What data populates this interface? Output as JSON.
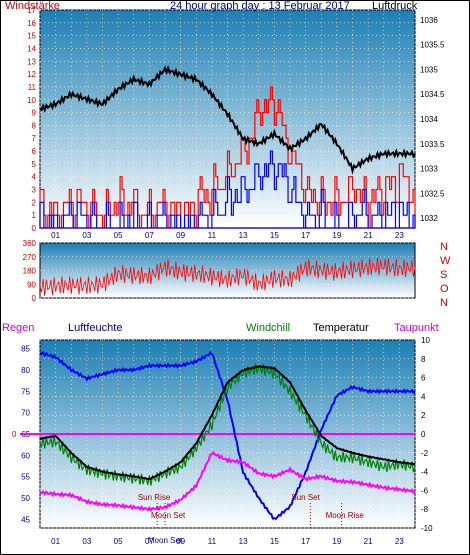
{
  "header": {
    "left_label": "Windstärke",
    "title": "24 hour graph day : 13 Februar 2017",
    "right_label": "Luftdruck"
  },
  "panel3_header": {
    "regen": "Regen",
    "luftfeuchte": "Luftfeuchte",
    "windchill": "Windchill",
    "temperatur": "Temperatur",
    "taupunkt": "Taupunkt"
  },
  "colors": {
    "panel_top": "#1c7fb4",
    "panel_bottom": "#ffffff",
    "wind": "#ff0000",
    "gust": "#0000ff",
    "pressure": "#000000",
    "windchill": "#008000",
    "temperature": "#000000",
    "humidity": "#0000ff",
    "dewpoint": "#ff00ff",
    "zero_line": "#ff00ff",
    "axis_red": "#cc0000",
    "axis_blue": "#00008b"
  },
  "chart_data": [
    {
      "type": "line",
      "title": "24 hour graph day : 13 Februar 2017",
      "left_axis": "Windstärke",
      "right_axis": "Luftdruck",
      "x_ticks": [
        "01",
        "03",
        "05",
        "07",
        "09",
        "11",
        "13",
        "15",
        "17",
        "19",
        "21",
        "23"
      ],
      "left_ylim": [
        0,
        17
      ],
      "left_ticks": [
        0,
        1,
        2,
        3,
        4,
        5,
        6,
        7,
        8,
        9,
        10,
        11,
        12,
        13,
        14,
        15,
        16,
        17
      ],
      "right_ylim": [
        1031.8,
        1036.2
      ],
      "right_ticks": [
        1032,
        1032.5,
        1033,
        1033.5,
        1034,
        1034.5,
        1035,
        1035.5,
        1036
      ],
      "series": [
        {
          "name": "Luftdruck",
          "axis": "right",
          "hours": [
            0,
            1,
            2,
            3,
            4,
            5,
            6,
            7,
            8,
            9,
            10,
            11,
            12,
            13,
            14,
            15,
            16,
            17,
            18,
            19,
            20,
            21,
            22,
            23,
            24
          ],
          "values": [
            1034.2,
            1034.3,
            1034.5,
            1034.4,
            1034.3,
            1034.6,
            1034.8,
            1034.7,
            1035.0,
            1034.9,
            1034.8,
            1034.5,
            1034.1,
            1033.6,
            1033.5,
            1033.7,
            1033.4,
            1033.6,
            1033.9,
            1033.5,
            1033.0,
            1033.2,
            1033.3,
            1033.3,
            1033.3
          ]
        },
        {
          "name": "wind",
          "axis": "left",
          "hours": [
            0,
            1,
            2,
            3,
            4,
            5,
            6,
            7,
            8,
            9,
            10,
            11,
            12,
            13,
            14,
            15,
            16,
            17,
            18,
            19,
            20,
            21,
            22,
            23,
            24
          ],
          "values": [
            2,
            1,
            2,
            2,
            1,
            2,
            2,
            1,
            2,
            1,
            2,
            3,
            4,
            6,
            9,
            10,
            6,
            3,
            2,
            2,
            3,
            2,
            3,
            4,
            3
          ]
        },
        {
          "name": "gust",
          "axis": "left",
          "hours": [
            0,
            1,
            2,
            3,
            4,
            5,
            6,
            7,
            8,
            9,
            10,
            11,
            12,
            13,
            14,
            15,
            16,
            17,
            18,
            19,
            20,
            21,
            22,
            23,
            24
          ],
          "values": [
            1,
            0,
            1,
            1,
            0,
            0,
            1,
            0,
            1,
            0,
            1,
            1,
            2,
            3,
            4,
            5,
            3,
            1,
            1,
            0,
            1,
            1,
            1,
            1,
            1
          ]
        }
      ]
    },
    {
      "type": "line",
      "right_letters": [
        "N",
        "W",
        "S",
        "O",
        "N"
      ],
      "ylim": [
        0,
        360
      ],
      "y_ticks": [
        0,
        90,
        180,
        270,
        360
      ],
      "series": [
        {
          "name": "wind direction",
          "hours": [
            0,
            1,
            2,
            3,
            4,
            5,
            6,
            7,
            8,
            9,
            10,
            11,
            12,
            13,
            14,
            15,
            16,
            17,
            18,
            19,
            20,
            21,
            22,
            23,
            24
          ],
          "values": [
            70,
            80,
            85,
            80,
            90,
            160,
            150,
            140,
            200,
            170,
            160,
            140,
            120,
            150,
            90,
            130,
            120,
            200,
            180,
            170,
            190,
            200,
            210,
            190,
            200
          ]
        }
      ]
    },
    {
      "type": "line",
      "left_ylim": [
        43,
        87
      ],
      "left_ticks": [
        45,
        50,
        55,
        60,
        65,
        70,
        75,
        80,
        85
      ],
      "right_ylim": [
        -10,
        10
      ],
      "right_ticks": [
        -10,
        -8,
        -6,
        -4,
        -2,
        0,
        2,
        4,
        6,
        8,
        10
      ],
      "x_ticks": [
        "01",
        "03",
        "05",
        "07",
        "09",
        "11",
        "13",
        "15",
        "17",
        "19",
        "21",
        "23"
      ],
      "annotations": [
        "Sun Rise",
        "Moon Set",
        "Moon Set",
        "Sun Set",
        "Moon Rise"
      ],
      "series": [
        {
          "name": "Luftfeuchte",
          "axis": "left",
          "hours": [
            0,
            1,
            2,
            3,
            4,
            5,
            6,
            7,
            8,
            9,
            10,
            11,
            12,
            13,
            14,
            15,
            16,
            17,
            18,
            19,
            20,
            21,
            22,
            23,
            24
          ],
          "values": [
            84,
            83,
            80,
            78,
            79,
            80,
            80,
            81,
            81,
            81,
            82,
            84,
            73,
            56,
            50,
            45,
            48,
            56,
            66,
            74,
            76,
            75,
            75,
            75,
            75
          ]
        },
        {
          "name": "Temperatur",
          "axis": "right",
          "hours": [
            0,
            1,
            2,
            3,
            4,
            5,
            6,
            7,
            8,
            9,
            10,
            11,
            12,
            13,
            14,
            15,
            16,
            17,
            18,
            19,
            20,
            21,
            22,
            23,
            24
          ],
          "values": [
            -0.5,
            -0.2,
            -2.0,
            -3.5,
            -4.0,
            -4.3,
            -4.5,
            -4.8,
            -4.0,
            -3.0,
            -1.0,
            2.0,
            5.5,
            6.8,
            7.2,
            7.0,
            5.5,
            2.5,
            -0.2,
            -1.5,
            -2.0,
            -2.4,
            -2.7,
            -3.0,
            -3.2
          ]
        },
        {
          "name": "Windchill",
          "axis": "right",
          "hours": [
            0,
            1,
            2,
            3,
            4,
            5,
            6,
            7,
            8,
            9,
            10,
            11,
            12,
            13,
            14,
            15,
            16,
            17,
            18,
            19,
            20,
            21,
            22,
            23,
            24
          ],
          "values": [
            -1.0,
            -0.8,
            -2.5,
            -3.8,
            -4.2,
            -4.5,
            -4.7,
            -5.0,
            -4.2,
            -3.5,
            -1.5,
            1.0,
            5.0,
            6.5,
            7.0,
            6.5,
            4.5,
            2.0,
            -1.0,
            -2.5,
            -2.5,
            -3.0,
            -3.5,
            -3.2,
            -3.5
          ]
        },
        {
          "name": "Taupunkt",
          "axis": "right",
          "hours": [
            0,
            1,
            2,
            3,
            4,
            5,
            6,
            7,
            8,
            9,
            10,
            11,
            12,
            13,
            14,
            15,
            16,
            17,
            18,
            19,
            20,
            21,
            22,
            23,
            24
          ],
          "values": [
            -6.2,
            -6.4,
            -6.5,
            -7.2,
            -7.5,
            -7.6,
            -7.8,
            -8.0,
            -7.8,
            -7.0,
            -5.5,
            -2.0,
            -2.8,
            -3.0,
            -4.2,
            -4.5,
            -3.8,
            -4.8,
            -4.5,
            -5.0,
            -5.1,
            -5.4,
            -5.7,
            -5.9,
            -6.1
          ]
        },
        {
          "name": "Regen",
          "axis": "right",
          "hours": [
            0,
            24
          ],
          "values": [
            0,
            0
          ]
        }
      ]
    }
  ]
}
